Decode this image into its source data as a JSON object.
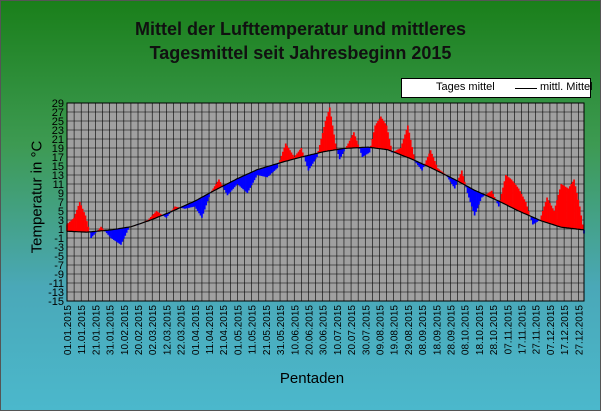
{
  "chart_data": {
    "type": "bar",
    "title_line1": "Mittel der Lufttemperatur und mittleres",
    "title_line2": "Tagesmittel seit Jahresbeginn 2015",
    "xlabel": "Pentaden",
    "ylabel": "Temperatur in °C",
    "ylim": [
      -15,
      29
    ],
    "yticks": [
      "-15",
      "-13",
      "-11",
      "-9",
      "-7",
      "-5",
      "-3",
      "-1",
      "1",
      "3",
      "5",
      "7",
      "9",
      "11",
      "13",
      "15",
      "17",
      "19",
      "21",
      "23",
      "25",
      "27",
      "29"
    ],
    "xticks": [
      "01.01.2015",
      "11.01.2015",
      "21.01.2015",
      "31.01.2015",
      "10.02.2015",
      "20.02.2015",
      "02.03.2015",
      "12.03.2015",
      "22.03.2015",
      "01.04.2015",
      "11.04.2015",
      "21.04.2015",
      "01.05.2015",
      "11.05.2015",
      "21.05.2015",
      "31.05.2015",
      "10.06.2015",
      "20.06.2015",
      "30.06.2015",
      "10.07.2015",
      "20.07.2015",
      "30.07.2015",
      "09.08.2015",
      "19.08.2015",
      "29.08.2015",
      "08.09.2015",
      "18.09.2015",
      "28.09.2015",
      "08.10.2015",
      "18.10.2015",
      "28.10.2015",
      "07.11.2015",
      "17.11.2015",
      "27.11.2015",
      "07.12.2015",
      "17.12.2015",
      "27.12.2015"
    ],
    "grid": true,
    "legend_position": "top-right",
    "series": [
      {
        "name": "Tages mittel"
      },
      {
        "name": "mittl. Mittel"
      }
    ],
    "x_start": "2015-01-01",
    "x_end": "2015-12-31",
    "mean_curve": [
      [
        "2015-01-01",
        0.5
      ],
      [
        "2015-01-15",
        0.3
      ],
      [
        "2015-02-01",
        0.8
      ],
      [
        "2015-02-15",
        1.5
      ],
      [
        "2015-03-01",
        3.0
      ],
      [
        "2015-03-15",
        4.8
      ],
      [
        "2015-04-01",
        7.2
      ],
      [
        "2015-04-15",
        9.6
      ],
      [
        "2015-05-01",
        12.2
      ],
      [
        "2015-05-15",
        14.2
      ],
      [
        "2015-06-01",
        15.8
      ],
      [
        "2015-06-15",
        17.0
      ],
      [
        "2015-07-01",
        18.2
      ],
      [
        "2015-07-15",
        18.9
      ],
      [
        "2015-08-01",
        19.2
      ],
      [
        "2015-08-15",
        18.6
      ],
      [
        "2015-09-01",
        16.5
      ],
      [
        "2015-09-15",
        14.5
      ],
      [
        "2015-10-01",
        12.0
      ],
      [
        "2015-10-15",
        9.6
      ],
      [
        "2015-11-01",
        7.2
      ],
      [
        "2015-11-15",
        5.0
      ],
      [
        "2015-12-01",
        2.8
      ],
      [
        "2015-12-15",
        1.4
      ],
      [
        "2015-12-31",
        0.8
      ]
    ],
    "daily_anchors": [
      [
        "2015-01-01",
        2.0
      ],
      [
        "2015-01-06",
        3.5
      ],
      [
        "2015-01-10",
        7.0
      ],
      [
        "2015-01-14",
        4.0
      ],
      [
        "2015-01-18",
        -1.0
      ],
      [
        "2015-01-25",
        1.5
      ],
      [
        "2015-02-01",
        -1.0
      ],
      [
        "2015-02-08",
        -2.5
      ],
      [
        "2015-02-14",
        1.5
      ],
      [
        "2015-02-20",
        2.0
      ],
      [
        "2015-02-27",
        3.0
      ],
      [
        "2015-03-05",
        5.0
      ],
      [
        "2015-03-12",
        3.5
      ],
      [
        "2015-03-18",
        6.0
      ],
      [
        "2015-03-25",
        5.5
      ],
      [
        "2015-04-01",
        6.0
      ],
      [
        "2015-04-06",
        3.5
      ],
      [
        "2015-04-12",
        9.0
      ],
      [
        "2015-04-18",
        12.0
      ],
      [
        "2015-04-24",
        8.5
      ],
      [
        "2015-05-01",
        11.0
      ],
      [
        "2015-05-08",
        9.0
      ],
      [
        "2015-05-15",
        13.0
      ],
      [
        "2015-05-22",
        12.5
      ],
      [
        "2015-05-29",
        14.5
      ],
      [
        "2015-06-04",
        20.0
      ],
      [
        "2015-06-10",
        17.0
      ],
      [
        "2015-06-15",
        19.0
      ],
      [
        "2015-06-20",
        14.0
      ],
      [
        "2015-06-26",
        17.0
      ],
      [
        "2015-07-02",
        25.0
      ],
      [
        "2015-07-05",
        28.0
      ],
      [
        "2015-07-09",
        20.0
      ],
      [
        "2015-07-12",
        16.5
      ],
      [
        "2015-07-18",
        20.0
      ],
      [
        "2015-07-22",
        22.5
      ],
      [
        "2015-07-28",
        17.0
      ],
      [
        "2015-08-02",
        18.0
      ],
      [
        "2015-08-06",
        24.0
      ],
      [
        "2015-08-10",
        26.0
      ],
      [
        "2015-08-14",
        24.0
      ],
      [
        "2015-08-18",
        18.0
      ],
      [
        "2015-08-24",
        19.0
      ],
      [
        "2015-08-29",
        24.0
      ],
      [
        "2015-09-03",
        16.0
      ],
      [
        "2015-09-08",
        14.0
      ],
      [
        "2015-09-14",
        18.5
      ],
      [
        "2015-09-19",
        14.5
      ],
      [
        "2015-09-25",
        13.0
      ],
      [
        "2015-10-01",
        10.0
      ],
      [
        "2015-10-06",
        14.0
      ],
      [
        "2015-10-10",
        9.0
      ],
      [
        "2015-10-15",
        4.0
      ],
      [
        "2015-10-20",
        8.0
      ],
      [
        "2015-10-27",
        9.5
      ],
      [
        "2015-11-01",
        6.0
      ],
      [
        "2015-11-06",
        13.0
      ],
      [
        "2015-11-10",
        12.0
      ],
      [
        "2015-11-15",
        10.0
      ],
      [
        "2015-11-20",
        7.0
      ],
      [
        "2015-11-25",
        2.0
      ],
      [
        "2015-11-30",
        3.0
      ],
      [
        "2015-12-05",
        8.0
      ],
      [
        "2015-12-10",
        5.0
      ],
      [
        "2015-12-15",
        11.0
      ],
      [
        "2015-12-20",
        10.0
      ],
      [
        "2015-12-24",
        12.0
      ],
      [
        "2015-12-28",
        6.0
      ],
      [
        "2015-12-31",
        0.0
      ]
    ]
  }
}
